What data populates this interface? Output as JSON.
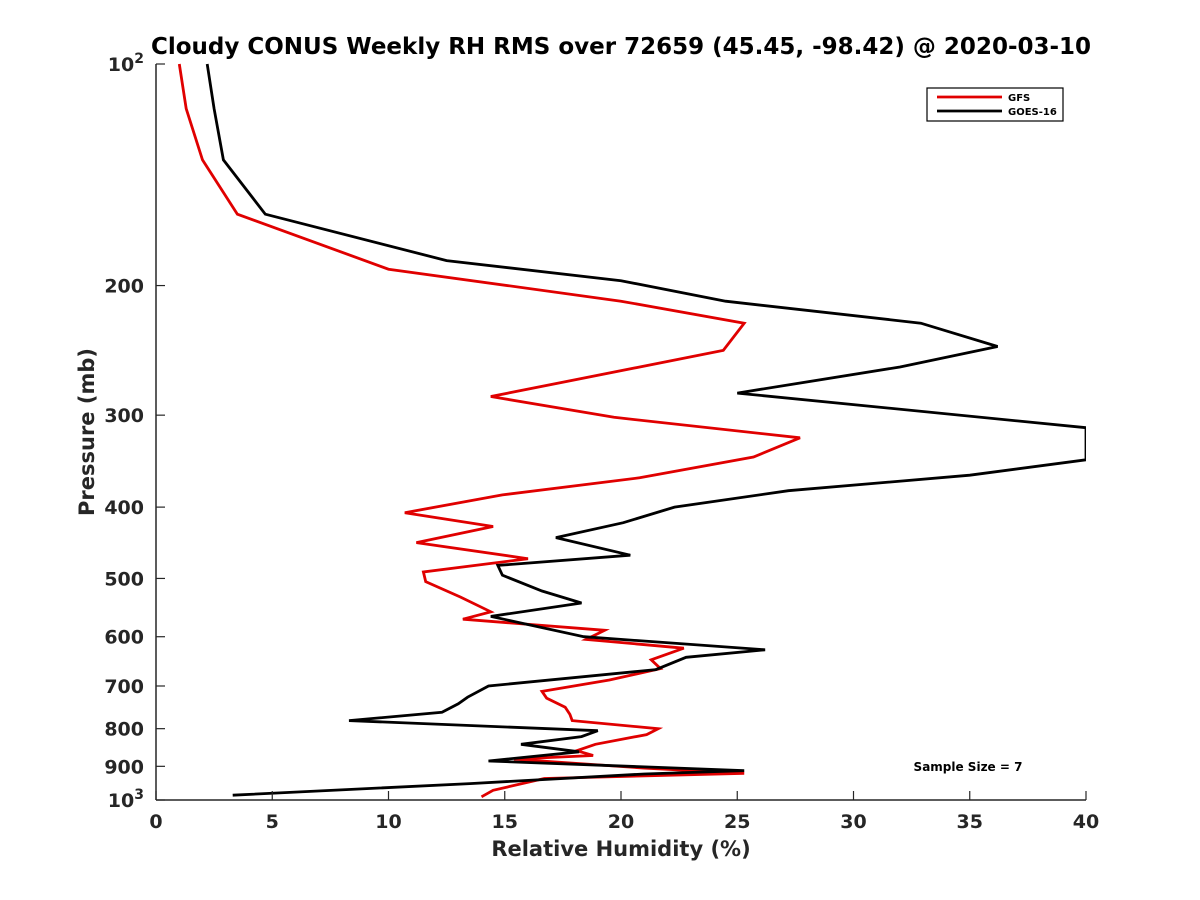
{
  "chart_data": {
    "type": "line",
    "title": "Cloudy CONUS Weekly RH RMS over 72659 (45.45, -98.42) @ 2020-03-10",
    "xlabel": "Relative Humidity (%)",
    "ylabel": "Pressure (mb)",
    "xlim": [
      0,
      40
    ],
    "ylim": [
      100,
      1000
    ],
    "y_scale": "log",
    "y_reversed": true,
    "grid": false,
    "legend_position": "top-right",
    "x_ticks": [
      "0",
      "5",
      "10",
      "15",
      "20",
      "25",
      "30",
      "35",
      "40"
    ],
    "y_ticks": [
      {
        "value": 100,
        "base": "10",
        "exp": "2"
      },
      {
        "value": 200,
        "label": "200"
      },
      {
        "value": 300,
        "label": "300"
      },
      {
        "value": 400,
        "label": "400"
      },
      {
        "value": 500,
        "label": "500"
      },
      {
        "value": 600,
        "label": "600"
      },
      {
        "value": 700,
        "label": "700"
      },
      {
        "value": 800,
        "label": "800"
      },
      {
        "value": 900,
        "label": "900"
      },
      {
        "value": 1000,
        "base": "10",
        "exp": "3"
      }
    ],
    "series": [
      {
        "name": "GFS",
        "color": "#e00000",
        "points": [
          [
            1.0,
            100
          ],
          [
            1.3,
            115
          ],
          [
            2.0,
            135
          ],
          [
            3.5,
            160
          ],
          [
            10.0,
            190
          ],
          [
            20.0,
            210
          ],
          [
            25.3,
            225
          ],
          [
            24.4,
            245
          ],
          [
            14.4,
            283
          ],
          [
            19.7,
            302
          ],
          [
            27.7,
            322
          ],
          [
            25.7,
            342
          ],
          [
            20.8,
            365
          ],
          [
            14.9,
            385
          ],
          [
            10.7,
            407
          ],
          [
            14.5,
            425
          ],
          [
            11.2,
            447
          ],
          [
            16.0,
            470
          ],
          [
            11.5,
            490
          ],
          [
            11.6,
            505
          ],
          [
            13.1,
            530
          ],
          [
            14.4,
            555
          ],
          [
            13.2,
            568
          ],
          [
            19.3,
            588
          ],
          [
            18.5,
            605
          ],
          [
            22.7,
            622
          ],
          [
            21.3,
            645
          ],
          [
            21.7,
            663
          ],
          [
            19.5,
            687
          ],
          [
            16.6,
            712
          ],
          [
            16.8,
            727
          ],
          [
            17.6,
            748
          ],
          [
            17.8,
            765
          ],
          [
            17.9,
            780
          ],
          [
            21.6,
            800
          ],
          [
            21.1,
            815
          ],
          [
            18.9,
            840
          ],
          [
            18.1,
            857
          ],
          [
            18.8,
            870
          ],
          [
            15.4,
            880
          ],
          [
            21.0,
            905
          ],
          [
            25.3,
            920
          ],
          [
            16.7,
            935
          ],
          [
            14.5,
            970
          ],
          [
            14.0,
            990
          ]
        ]
      },
      {
        "name": "GOES-16",
        "color": "#000000",
        "points": [
          [
            2.2,
            100
          ],
          [
            2.5,
            115
          ],
          [
            2.9,
            135
          ],
          [
            4.7,
            160
          ],
          [
            12.5,
            185
          ],
          [
            20.0,
            197
          ],
          [
            24.5,
            210
          ],
          [
            32.9,
            225
          ],
          [
            36.2,
            242
          ],
          [
            32.0,
            258
          ],
          [
            25.0,
            280
          ],
          [
            40.0,
            312
          ],
          [
            40.0,
            345
          ],
          [
            35.0,
            362
          ],
          [
            27.2,
            380
          ],
          [
            22.3,
            400
          ],
          [
            20.1,
            420
          ],
          [
            17.2,
            440
          ],
          [
            20.4,
            465
          ],
          [
            14.7,
            480
          ],
          [
            14.9,
            495
          ],
          [
            16.6,
            520
          ],
          [
            18.3,
            540
          ],
          [
            14.4,
            563
          ],
          [
            18.4,
            600
          ],
          [
            26.2,
            625
          ],
          [
            22.8,
            640
          ],
          [
            21.5,
            665
          ],
          [
            14.3,
            700
          ],
          [
            13.4,
            725
          ],
          [
            13.0,
            740
          ],
          [
            12.3,
            760
          ],
          [
            8.3,
            780
          ],
          [
            19.0,
            805
          ],
          [
            18.3,
            820
          ],
          [
            15.7,
            840
          ],
          [
            18.2,
            860
          ],
          [
            14.3,
            885
          ],
          [
            25.3,
            912
          ],
          [
            21.0,
            922
          ],
          [
            13.5,
            950
          ],
          [
            3.3,
            985
          ]
        ]
      }
    ],
    "annotations": [
      "Sample Size = 7"
    ]
  }
}
